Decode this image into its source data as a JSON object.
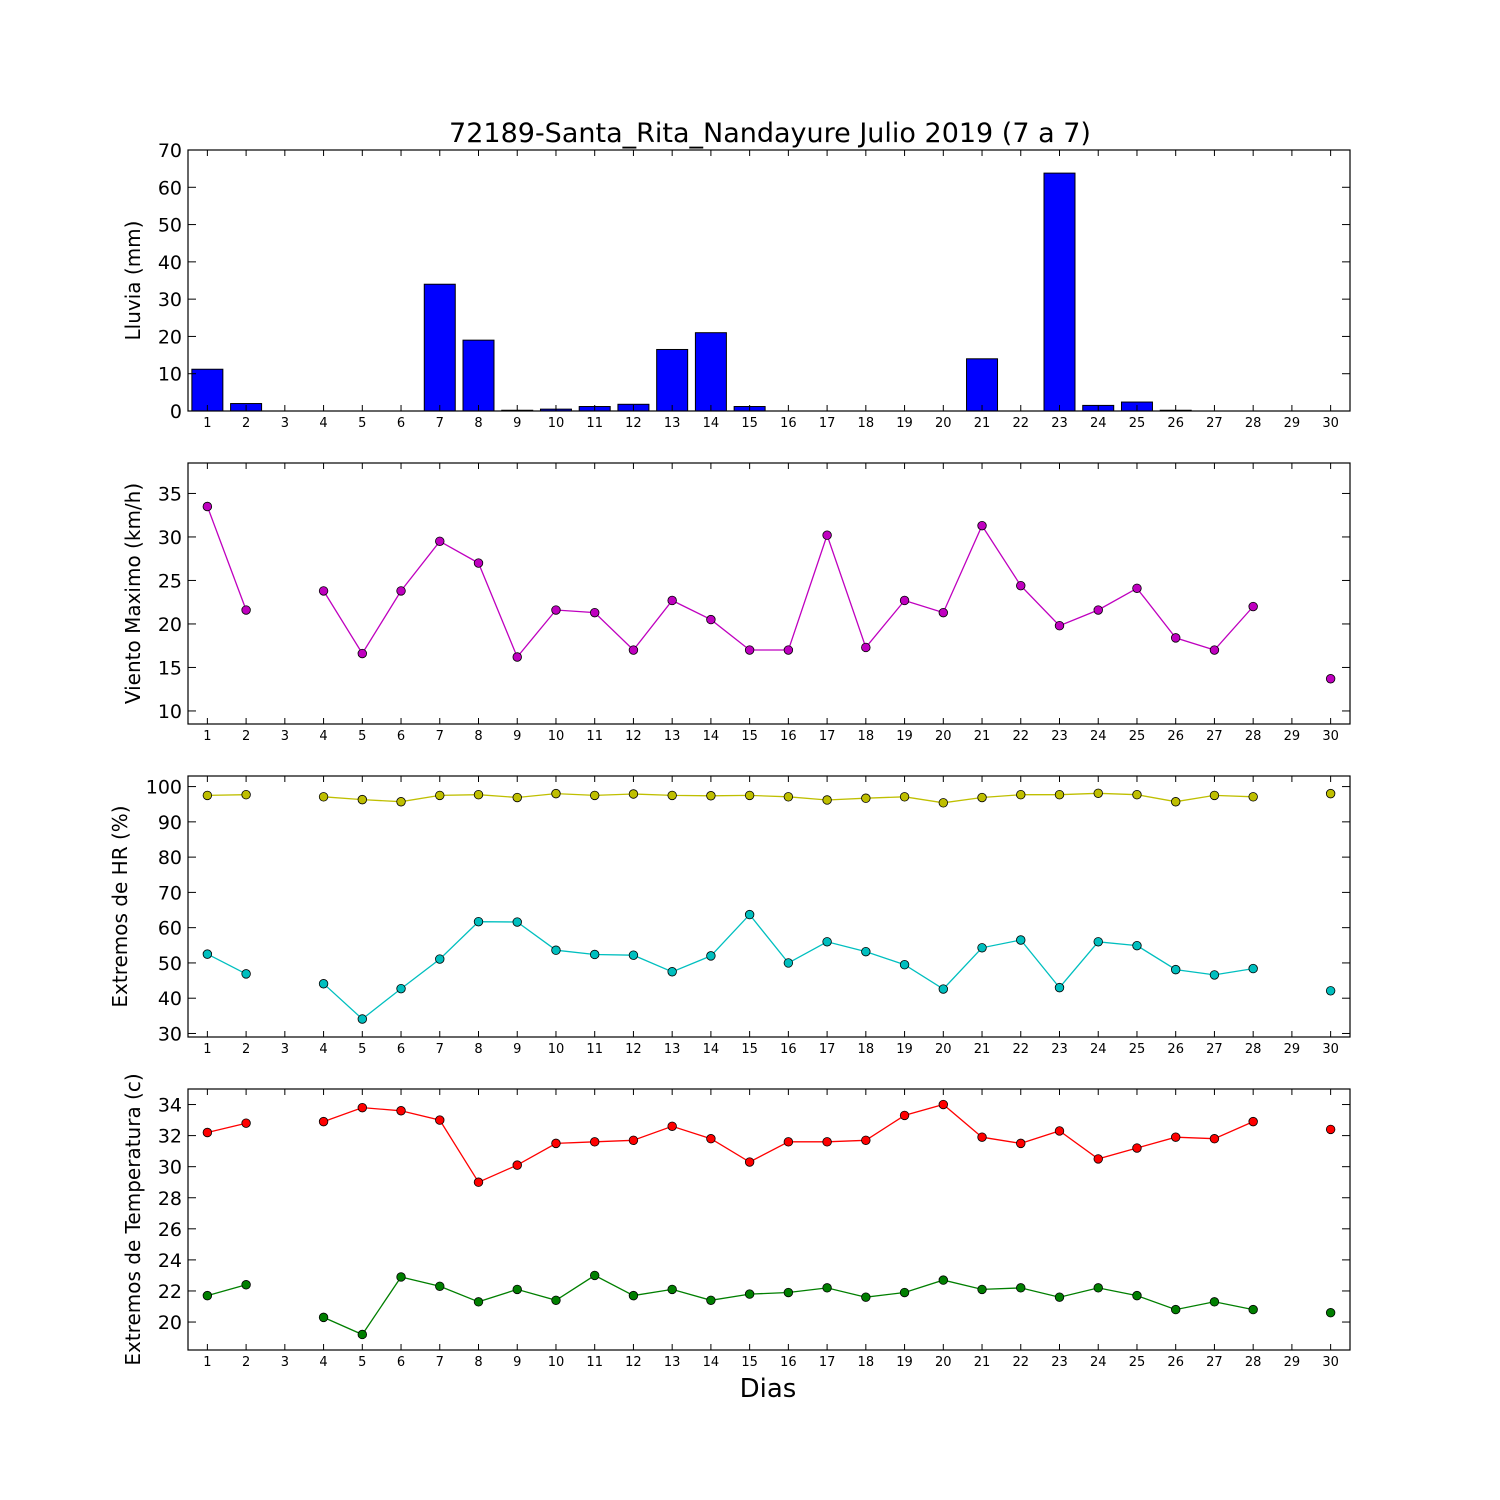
{
  "title": "72189-Santa_Rita_Nandayure Julio 2019  (7 a 7)",
  "xlabel": "Dias",
  "chart_data": [
    {
      "type": "bar",
      "ylabel": "Lluvia (mm)",
      "x": [
        1,
        2,
        3,
        4,
        5,
        6,
        7,
        8,
        9,
        10,
        11,
        12,
        13,
        14,
        15,
        16,
        17,
        18,
        19,
        20,
        21,
        22,
        23,
        24,
        25,
        26,
        27,
        28,
        29,
        30
      ],
      "xticks": [
        1,
        2,
        3,
        4,
        5,
        6,
        7,
        8,
        9,
        10,
        11,
        12,
        13,
        14,
        15,
        16,
        17,
        18,
        19,
        20,
        21,
        22,
        23,
        24,
        25,
        26,
        27,
        28,
        29,
        30
      ],
      "xlim": [
        0.5,
        30.5
      ],
      "ylim": [
        0,
        70
      ],
      "yticks": [
        0,
        10,
        20,
        30,
        40,
        50,
        60,
        70
      ],
      "series": [
        {
          "color": "#0000ff",
          "values": [
            11.2,
            2.0,
            0,
            0,
            0,
            0,
            34.0,
            19.0,
            0.2,
            0.5,
            1.2,
            1.8,
            16.5,
            21.0,
            1.2,
            0,
            0,
            0,
            0,
            0,
            14.0,
            0,
            63.8,
            1.5,
            2.4,
            0.2,
            0,
            0,
            0,
            0
          ]
        }
      ]
    },
    {
      "type": "line",
      "ylabel": "Viento Maximo (km/h)",
      "xticks": [
        1,
        2,
        3,
        4,
        5,
        6,
        7,
        8,
        9,
        10,
        11,
        12,
        13,
        14,
        15,
        16,
        17,
        18,
        19,
        20,
        21,
        22,
        23,
        24,
        25,
        26,
        27,
        28,
        29,
        30
      ],
      "xlim": [
        0.5,
        30.5
      ],
      "ylim": [
        8.5,
        38.5
      ],
      "yticks": [
        10,
        15,
        20,
        25,
        30,
        35
      ],
      "series": [
        {
          "color": "#bf00bf",
          "x": [
            1,
            2,
            3,
            4,
            5,
            6,
            7,
            8,
            9,
            10,
            11,
            12,
            13,
            14,
            15,
            16,
            17,
            18,
            19,
            20,
            21,
            22,
            23,
            24,
            25,
            26,
            27,
            28,
            29,
            30
          ],
          "values": [
            33.5,
            21.6,
            null,
            23.8,
            16.6,
            23.8,
            29.5,
            27.0,
            16.2,
            21.6,
            21.3,
            17.0,
            22.7,
            20.5,
            17.0,
            17.0,
            30.2,
            17.3,
            22.7,
            21.3,
            31.3,
            24.4,
            19.8,
            21.6,
            24.1,
            18.4,
            17.0,
            22.0,
            null,
            13.7
          ]
        }
      ]
    },
    {
      "type": "line",
      "ylabel": "Extremos de HR (%)",
      "xticks": [
        1,
        2,
        3,
        4,
        5,
        6,
        7,
        8,
        9,
        10,
        11,
        12,
        13,
        14,
        15,
        16,
        17,
        18,
        19,
        20,
        21,
        22,
        23,
        24,
        25,
        26,
        27,
        28,
        29,
        30
      ],
      "xlim": [
        0.5,
        30.5
      ],
      "ylim": [
        29,
        103
      ],
      "yticks": [
        30,
        40,
        50,
        60,
        70,
        80,
        90,
        100
      ],
      "series": [
        {
          "color": "#bfbf00",
          "x": [
            1,
            2,
            3,
            4,
            5,
            6,
            7,
            8,
            9,
            10,
            11,
            12,
            13,
            14,
            15,
            16,
            17,
            18,
            19,
            20,
            21,
            22,
            23,
            24,
            25,
            26,
            27,
            28,
            29,
            30
          ],
          "values": [
            97.5,
            97.7,
            null,
            97.1,
            96.3,
            95.7,
            97.5,
            97.7,
            96.9,
            98.0,
            97.5,
            97.9,
            97.5,
            97.4,
            97.5,
            97.1,
            96.2,
            96.7,
            97.1,
            95.4,
            96.9,
            97.7,
            97.7,
            98.1,
            97.7,
            95.7,
            97.5,
            97.1,
            null,
            98.0
          ]
        },
        {
          "color": "#00bfbf",
          "x": [
            1,
            2,
            3,
            4,
            5,
            6,
            7,
            8,
            9,
            10,
            11,
            12,
            13,
            14,
            15,
            16,
            17,
            18,
            19,
            20,
            21,
            22,
            23,
            24,
            25,
            26,
            27,
            28,
            29,
            30
          ],
          "values": [
            52.5,
            46.9,
            null,
            44.1,
            34.1,
            42.7,
            51.1,
            61.7,
            61.6,
            53.6,
            52.4,
            52.2,
            47.5,
            52.0,
            63.7,
            50.0,
            56.0,
            53.2,
            49.5,
            42.6,
            54.3,
            56.5,
            43.0,
            56.0,
            54.9,
            48.1,
            46.6,
            48.4,
            null,
            42.1
          ]
        }
      ]
    },
    {
      "type": "line",
      "ylabel": "Extremos de Temperatura (c)",
      "xticks": [
        1,
        2,
        3,
        4,
        5,
        6,
        7,
        8,
        9,
        10,
        11,
        12,
        13,
        14,
        15,
        16,
        17,
        18,
        19,
        20,
        21,
        22,
        23,
        24,
        25,
        26,
        27,
        28,
        29,
        30
      ],
      "xlim": [
        0.5,
        30.5
      ],
      "ylim": [
        18.2,
        35.0
      ],
      "yticks": [
        20,
        22,
        24,
        26,
        28,
        30,
        32,
        34
      ],
      "series": [
        {
          "color": "#ff0000",
          "x": [
            1,
            2,
            3,
            4,
            5,
            6,
            7,
            8,
            9,
            10,
            11,
            12,
            13,
            14,
            15,
            16,
            17,
            18,
            19,
            20,
            21,
            22,
            23,
            24,
            25,
            26,
            27,
            28,
            29,
            30
          ],
          "values": [
            32.2,
            32.8,
            null,
            32.9,
            33.8,
            33.6,
            33.0,
            29.0,
            30.1,
            31.5,
            31.6,
            31.7,
            32.6,
            31.8,
            30.3,
            31.6,
            31.6,
            31.7,
            33.3,
            34.0,
            31.9,
            31.5,
            32.3,
            30.5,
            31.2,
            31.9,
            31.8,
            32.9,
            null,
            32.4
          ]
        },
        {
          "color": "#007f00",
          "x": [
            1,
            2,
            3,
            4,
            5,
            6,
            7,
            8,
            9,
            10,
            11,
            12,
            13,
            14,
            15,
            16,
            17,
            18,
            19,
            20,
            21,
            22,
            23,
            24,
            25,
            26,
            27,
            28,
            29,
            30
          ],
          "values": [
            21.7,
            22.4,
            null,
            20.3,
            19.2,
            22.9,
            22.3,
            21.3,
            22.1,
            21.4,
            23.0,
            21.7,
            22.1,
            21.4,
            21.8,
            21.9,
            22.2,
            21.6,
            21.9,
            22.7,
            22.1,
            22.2,
            21.6,
            22.2,
            21.7,
            20.8,
            21.3,
            20.8,
            null,
            20.6
          ]
        }
      ]
    }
  ]
}
